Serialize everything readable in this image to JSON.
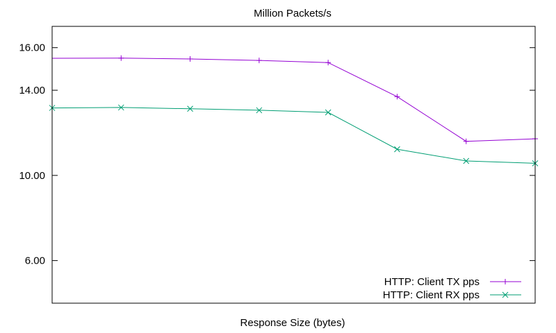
{
  "chart_data": {
    "type": "line",
    "title": "Million Packets/s",
    "xlabel": "Response Size (bytes)",
    "ylabel": "",
    "ylim": [
      4.0,
      17.0
    ],
    "yticks": [
      {
        "value": 16.0,
        "label": "16.00"
      },
      {
        "value": 14.0,
        "label": "14.00"
      },
      {
        "value": 10.0,
        "label": "10.00"
      },
      {
        "value": 6.0,
        "label": "6.00"
      }
    ],
    "grid": false,
    "legend_position": "bottom-right",
    "x": [
      1,
      2,
      3,
      4,
      5,
      6,
      7,
      8
    ],
    "xlim": [
      1,
      8
    ],
    "series": [
      {
        "name": "HTTP: Client TX pps",
        "color": "#9400d3",
        "marker": "plus",
        "values": [
          15.5,
          15.51,
          15.47,
          15.4,
          15.3,
          13.7,
          11.6,
          11.72
        ],
        "marker_indices": [
          1,
          2,
          3,
          4,
          5,
          6,
          7
        ]
      },
      {
        "name": "HTTP: Client RX pps",
        "color": "#009e73",
        "marker": "cross",
        "values": [
          13.17,
          13.19,
          13.13,
          13.06,
          12.96,
          11.23,
          10.68,
          10.57
        ],
        "marker_indices": [
          0,
          1,
          2,
          3,
          4,
          5,
          6,
          7
        ]
      }
    ]
  }
}
